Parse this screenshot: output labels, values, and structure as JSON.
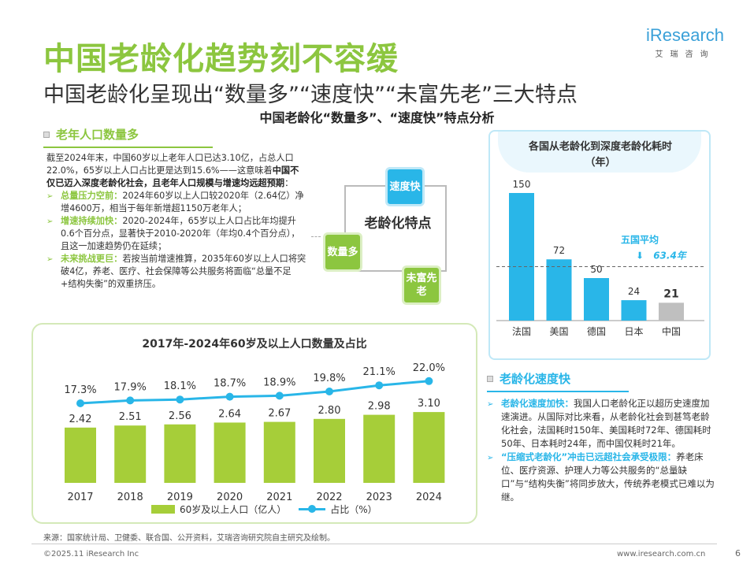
{
  "title": "中国老龄化趋势刻不容缓",
  "subtitle": "中国老龄化呈现出“数量多”“速度快”“未富先老”三大特点",
  "section_title": "中国老龄化“数量多”、“速度快”特点分析",
  "logo": {
    "brand": "iResearch",
    "sub": "艾瑞咨询"
  },
  "left": {
    "heading": "老年人口数量多",
    "intro": "截至2024年末，中国60岁以上老年人口已达3.10亿，占总人口22.0%，65岁以上人口占比更是达到15.6%——这意味着",
    "intro_bold": "中国不仅已迈入深度老龄化社会，且老年人口规模与增速均远超预期",
    "intro_end": "：",
    "bullets": [
      {
        "label": "总量压力空前：",
        "text": "2024年60岁以上人口较2020年（2.64亿）净增4600万，相当于每年新增超1150万老年人；"
      },
      {
        "label": "增速持续加快：",
        "text": "2020-2024年，65岁以上人口占比年均提升0.6个百分点，显著快于2010-2020年（年均0.4个百分点），且这一加速趋势仍在延续；"
      },
      {
        "label": "未来挑战更巨：",
        "text": "若按当前增速推算，2035年60岁以上人口将突破4亿，养老、医疗、社会保障等公共服务将面临“总量不足+结构失衡”的双重挤压。"
      }
    ]
  },
  "diagram": {
    "center": "老龄化特点",
    "nodes": [
      "速度快",
      "数量多",
      "未富先老"
    ],
    "colors": {
      "blue": "#29b6e8",
      "green": "#8cc63f"
    }
  },
  "chart_data": [
    {
      "type": "bar",
      "title": "各国从老龄化到深度老龄化耗时（年）",
      "categories": [
        "法国",
        "美国",
        "德国",
        "日本",
        "中国"
      ],
      "values": [
        150,
        72,
        50,
        24,
        21
      ],
      "reference_line": {
        "label": "五国平均",
        "value": 63.4,
        "value_label": "63.4年"
      },
      "colors": [
        "#29b6e8",
        "#29b6e8",
        "#29b6e8",
        "#29b6e8",
        "#bfbfbf"
      ]
    },
    {
      "type": "bar+line",
      "title": "2017年-2024年60岁及以上人口数量及占比",
      "categories": [
        "2017",
        "2018",
        "2019",
        "2020",
        "2021",
        "2022",
        "2023",
        "2024"
      ],
      "series": [
        {
          "name": "60岁及以上人口（亿人）",
          "type": "bar",
          "values": [
            2.42,
            2.51,
            2.56,
            2.64,
            2.67,
            2.8,
            2.98,
            3.1
          ],
          "labels": [
            "2.42",
            "2.51",
            "2.56",
            "2.64",
            "2.67",
            "2.80",
            "2.98",
            "3.10"
          ],
          "color": "#a6ce39"
        },
        {
          "name": "占比（%）",
          "type": "line",
          "values": [
            17.3,
            17.9,
            18.1,
            18.7,
            18.9,
            19.8,
            21.1,
            22.0
          ],
          "labels": [
            "17.3%",
            "17.9%",
            "18.1%",
            "18.7%",
            "18.9%",
            "19.8%",
            "21.1%",
            "22.0%"
          ],
          "color": "#29b6e8"
        }
      ],
      "legend": "bottom"
    }
  ],
  "right": {
    "heading": "老龄化速度快",
    "bullets": [
      {
        "label": "老龄化速度加快：",
        "text": "我国人口老龄化正以超历史速度加速演进。从国际对比来看，从老龄化社会到甚笃老龄化社会，法国耗时150年、美国耗时72年、德国耗时50年、日本耗时24年，而中国仅耗时21年。"
      },
      {
        "label": "“压缩式老龄化”冲击已远超社会承受极限：",
        "text": "养老床位、医疗资源、护理人力等公共服务的“总量缺口”与“结构失衡”将同步放大，传统养老模式已难以为继。"
      }
    ]
  },
  "footer": {
    "source": "来源：国家统计局、卫健委、联合国、公开资料，艾瑞咨询研究院自主研究及绘制。",
    "copyright": "©2025.11 iResearch Inc",
    "url": "www.iresearch.com.cn",
    "page": "6"
  }
}
